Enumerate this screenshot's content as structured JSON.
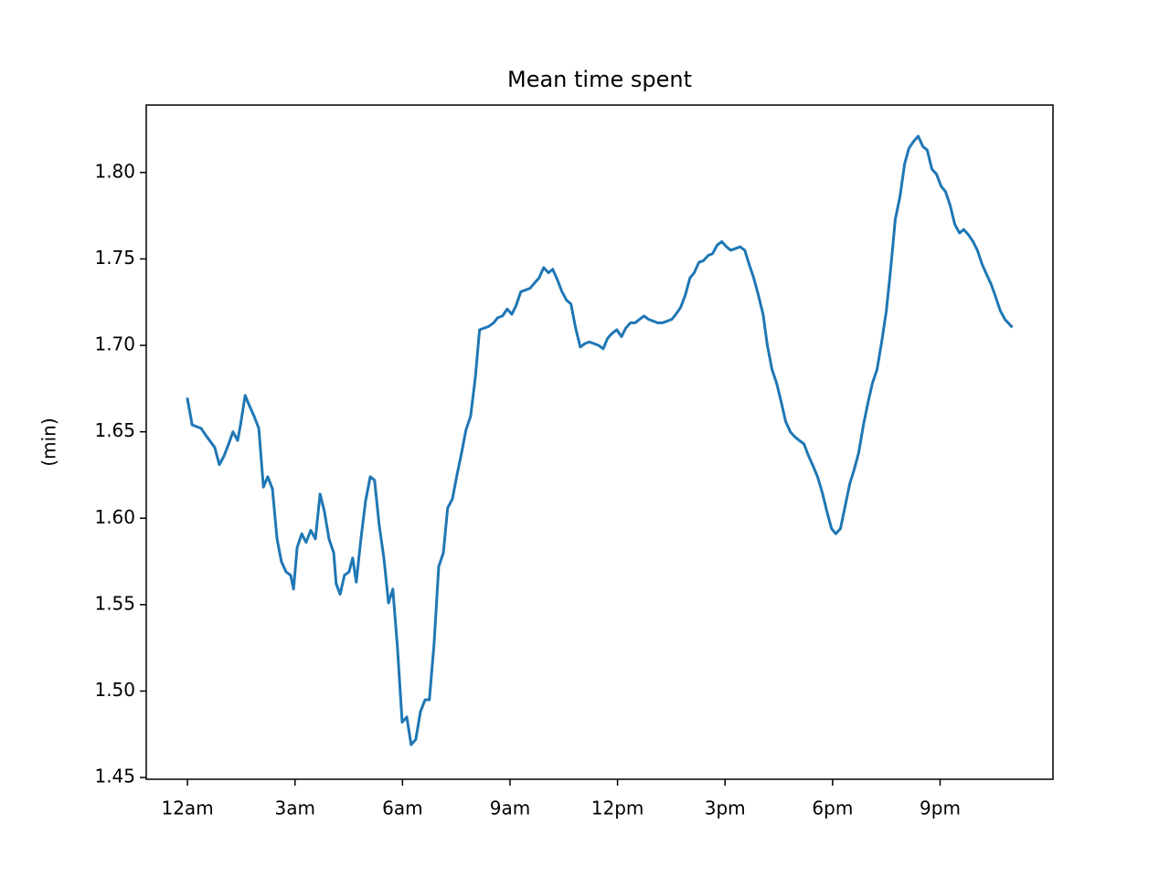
{
  "chart_data": {
    "type": "line",
    "title": "Mean time spent",
    "ylabel": "(min)",
    "color": "#1f77b4",
    "x": [
      0,
      0.13,
      0.38,
      0.51,
      0.76,
      0.89,
      1.02,
      1.15,
      1.27,
      1.4,
      1.48,
      1.61,
      1.73,
      1.86,
      1.99,
      2.12,
      2.24,
      2.37,
      2.5,
      2.62,
      2.75,
      2.88,
      2.96,
      3.06,
      3.19,
      3.31,
      3.44,
      3.57,
      3.7,
      3.82,
      3.95,
      4.08,
      4.15,
      4.26,
      4.38,
      4.51,
      4.61,
      4.71,
      4.84,
      4.97,
      5.1,
      5.22,
      5.35,
      5.48,
      5.61,
      5.73,
      5.86,
      5.99,
      6.12,
      6.24,
      6.37,
      6.5,
      6.63,
      6.75,
      6.88,
      7.01,
      7.14,
      7.26,
      7.39,
      7.52,
      7.65,
      7.77,
      7.9,
      8.03,
      8.15,
      8.28,
      8.41,
      8.54,
      8.66,
      8.79,
      8.92,
      9.05,
      9.17,
      9.3,
      9.43,
      9.56,
      9.68,
      9.81,
      9.94,
      10.07,
      10.19,
      10.32,
      10.45,
      10.58,
      10.7,
      10.83,
      10.96,
      11.09,
      11.21,
      11.34,
      11.47,
      11.6,
      11.72,
      11.85,
      11.98,
      12.11,
      12.23,
      12.36,
      12.49,
      12.61,
      12.74,
      12.87,
      13.0,
      13.12,
      13.25,
      13.38,
      13.51,
      13.63,
      13.76,
      13.89,
      14.02,
      14.14,
      14.27,
      14.4,
      14.53,
      14.65,
      14.78,
      14.91,
      15.04,
      15.16,
      15.29,
      15.42,
      15.55,
      15.67,
      15.8,
      15.93,
      16.06,
      16.18,
      16.31,
      16.44,
      16.57,
      16.69,
      16.82,
      16.95,
      17.07,
      17.2,
      17.33,
      17.46,
      17.58,
      17.71,
      17.84,
      17.97,
      18.09,
      18.22,
      18.35,
      18.48,
      18.6,
      18.73,
      18.86,
      18.99,
      19.11,
      19.24,
      19.37,
      19.5,
      19.62,
      19.75,
      19.88,
      20.01,
      20.13,
      20.26,
      20.39,
      20.52,
      20.64,
      20.77,
      20.9,
      21.03,
      21.15,
      21.28,
      21.41,
      21.54,
      21.66,
      21.79,
      21.92,
      22.04,
      22.17,
      22.3,
      22.43,
      22.55,
      22.68,
      22.81,
      22.99
    ],
    "values": [
      1.669,
      1.654,
      1.652,
      1.648,
      1.641,
      1.631,
      1.636,
      1.643,
      1.65,
      1.645,
      1.654,
      1.671,
      1.665,
      1.659,
      1.652,
      1.618,
      1.624,
      1.617,
      1.588,
      1.575,
      1.569,
      1.567,
      1.559,
      1.583,
      1.591,
      1.586,
      1.593,
      1.588,
      1.614,
      1.604,
      1.588,
      1.58,
      1.562,
      1.556,
      1.567,
      1.569,
      1.577,
      1.563,
      1.588,
      1.61,
      1.624,
      1.622,
      1.596,
      1.577,
      1.551,
      1.559,
      1.525,
      1.482,
      1.485,
      1.469,
      1.472,
      1.488,
      1.495,
      1.495,
      1.527,
      1.572,
      1.58,
      1.606,
      1.611,
      1.625,
      1.638,
      1.651,
      1.659,
      1.681,
      1.709,
      1.71,
      1.711,
      1.713,
      1.716,
      1.717,
      1.721,
      1.718,
      1.723,
      1.731,
      1.732,
      1.733,
      1.736,
      1.739,
      1.745,
      1.742,
      1.744,
      1.738,
      1.731,
      1.726,
      1.724,
      1.71,
      1.699,
      1.701,
      1.702,
      1.701,
      1.7,
      1.698,
      1.704,
      1.707,
      1.709,
      1.705,
      1.71,
      1.713,
      1.713,
      1.715,
      1.717,
      1.715,
      1.714,
      1.713,
      1.713,
      1.714,
      1.715,
      1.718,
      1.722,
      1.729,
      1.739,
      1.742,
      1.748,
      1.749,
      1.752,
      1.753,
      1.758,
      1.76,
      1.757,
      1.755,
      1.756,
      1.757,
      1.755,
      1.747,
      1.739,
      1.729,
      1.718,
      1.7,
      1.686,
      1.678,
      1.667,
      1.656,
      1.65,
      1.647,
      1.645,
      1.643,
      1.636,
      1.63,
      1.624,
      1.615,
      1.604,
      1.594,
      1.591,
      1.594,
      1.607,
      1.62,
      1.628,
      1.638,
      1.654,
      1.667,
      1.678,
      1.686,
      1.702,
      1.72,
      1.744,
      1.773,
      1.786,
      1.805,
      1.814,
      1.818,
      1.821,
      1.815,
      1.813,
      1.802,
      1.799,
      1.792,
      1.789,
      1.781,
      1.77,
      1.765,
      1.767,
      1.764,
      1.76,
      1.755,
      1.747,
      1.741,
      1.735,
      1.728,
      1.72,
      1.715,
      1.711
    ],
    "xlim": [
      -1.15,
      24.15
    ],
    "xticks": [
      {
        "value": 0,
        "label": "12am"
      },
      {
        "value": 3,
        "label": "3am"
      },
      {
        "value": 6,
        "label": "6am"
      },
      {
        "value": 9,
        "label": "9am"
      },
      {
        "value": 12,
        "label": "12pm"
      },
      {
        "value": 15,
        "label": "3pm"
      },
      {
        "value": 18,
        "label": "6pm"
      },
      {
        "value": 21,
        "label": "9pm"
      }
    ],
    "ylim": [
      1.449,
      1.839
    ],
    "yticks": [
      1.45,
      {
        "value": 1.5,
        "label": "1.50"
      },
      1.55,
      {
        "value": 1.6,
        "label": "1.60"
      },
      1.65,
      {
        "value": 1.7,
        "label": "1.70"
      },
      1.75,
      {
        "value": 1.8,
        "label": "1.80"
      }
    ]
  }
}
